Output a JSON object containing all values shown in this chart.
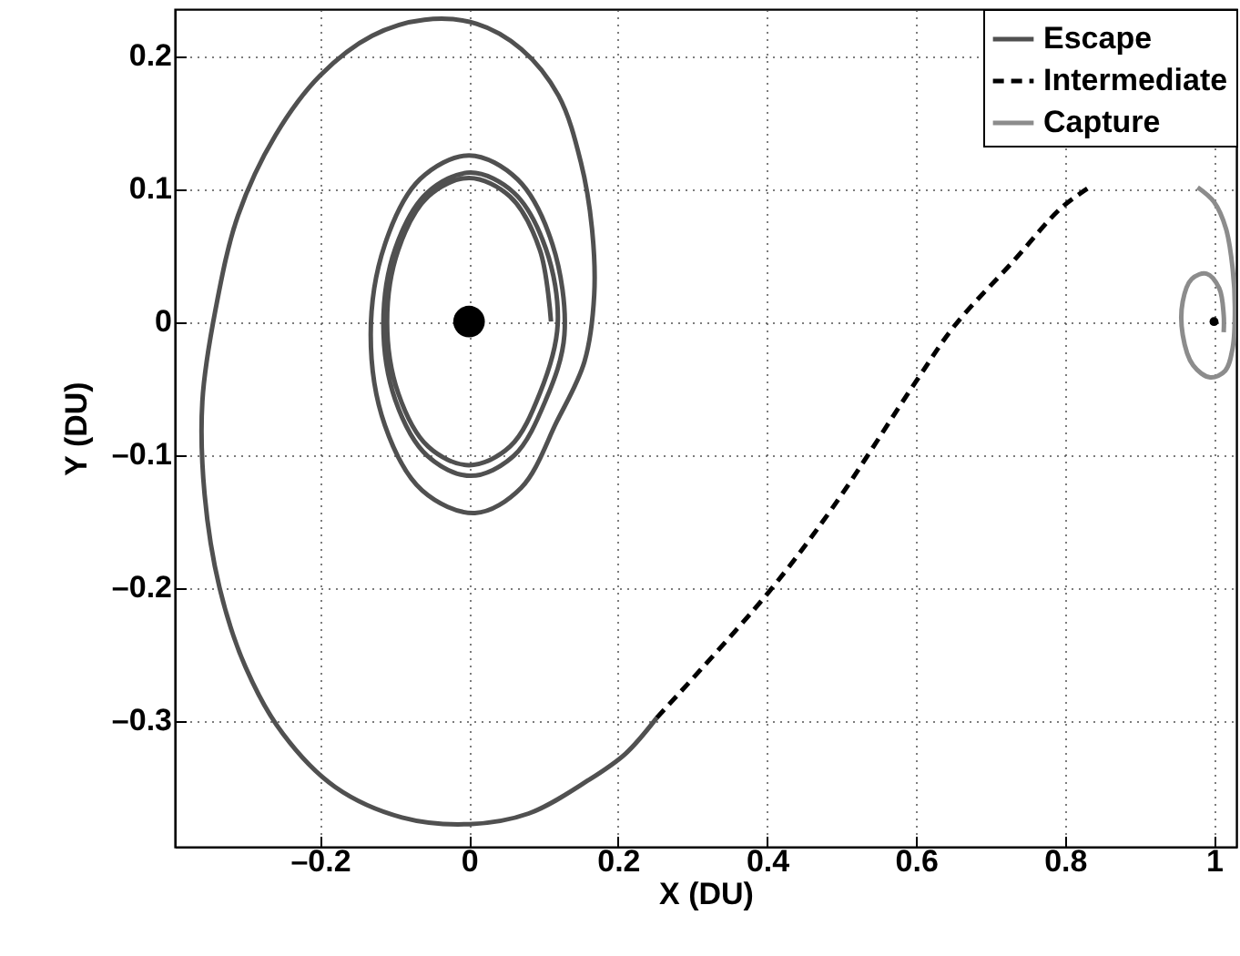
{
  "chart_data": {
    "type": "line",
    "xlabel": "X (DU)",
    "ylabel": "Y (DU)",
    "xlim": [
      -0.395,
      1.03
    ],
    "ylim": [
      -0.395,
      0.235
    ],
    "xticks": [
      {
        "value": -0.2,
        "label": "–0.2"
      },
      0,
      0.2,
      0.4,
      0.6,
      0.8,
      1
    ],
    "yticks": [
      {
        "value": -0.3,
        "label": "–0.3"
      },
      {
        "value": -0.2,
        "label": "–0.2"
      },
      {
        "value": -0.1,
        "label": "–0.1"
      },
      0,
      0.1,
      0.2
    ],
    "grid": true,
    "legend": "top right",
    "series": [
      {
        "name": "Escape",
        "color": "#505050",
        "line_style": "solid",
        "x": [
          0.11,
          0.095,
          0.055,
          0,
          -0.055,
          -0.095,
          -0.11,
          -0.095,
          -0.055,
          0,
          0.055,
          0.095,
          0.119,
          0.103,
          0.06,
          0.002,
          -0.056,
          -0.099,
          -0.115,
          -0.099,
          -0.056,
          0.002,
          0.06,
          0.103,
          0.128,
          0.112,
          0.065,
          0,
          -0.066,
          -0.113,
          -0.132,
          -0.113,
          -0.063,
          0.008,
          0.07,
          0.118,
          0.155,
          0.168,
          0.165,
          0.15,
          0.12,
          0.07,
          0.01,
          -0.06,
          -0.13,
          -0.2,
          -0.26,
          -0.31,
          -0.34,
          -0.358,
          -0.355,
          -0.335,
          -0.3,
          -0.25,
          -0.18,
          -0.09,
          0,
          0.08,
          0.16,
          0.21,
          0.252
        ],
        "values": [
          0,
          0.054,
          0.094,
          0.108,
          0.094,
          0.054,
          0,
          -0.054,
          -0.094,
          -0.108,
          -0.094,
          -0.054,
          -0.002,
          0.055,
          0.097,
          0.112,
          0.097,
          0.055,
          -0.002,
          -0.059,
          -0.101,
          -0.116,
          -0.101,
          -0.059,
          -0.01,
          0.058,
          0.107,
          0.125,
          0.107,
          0.058,
          -0.01,
          -0.078,
          -0.127,
          -0.144,
          -0.125,
          -0.075,
          -0.03,
          0.02,
          0.07,
          0.12,
          0.17,
          0.205,
          0.224,
          0.227,
          0.215,
          0.185,
          0.14,
          0.08,
          0.01,
          -0.06,
          -0.13,
          -0.2,
          -0.26,
          -0.31,
          -0.35,
          -0.373,
          -0.378,
          -0.37,
          -0.345,
          -0.325,
          -0.298
        ]
      },
      {
        "name": "Intermediate",
        "color": "#000000",
        "line_style": "dashed",
        "x": [
          0.252,
          0.4,
          0.488,
          0.6,
          0.652,
          0.73,
          0.794,
          0.83
        ],
        "values": [
          -0.298,
          -0.205,
          -0.14,
          -0.045,
          -0.003,
          0.045,
          0.085,
          0.1
        ]
      },
      {
        "name": "Capture",
        "color": "#8c8c8c",
        "line_style": "solid",
        "x": [
          0.978,
          1.0,
          1.016,
          1.025,
          1.028,
          1.025,
          1.015,
          0.995,
          0.972,
          0.958,
          0.958,
          0.97,
          0.99,
          1.007,
          1.013,
          1.013
        ],
        "values": [
          0.101,
          0.09,
          0.07,
          0.04,
          0.01,
          -0.02,
          -0.037,
          -0.042,
          -0.033,
          -0.01,
          0.015,
          0.032,
          0.036,
          0.025,
          0.005,
          -0.008
        ]
      },
      {
        "type": "bubble",
        "color": "#000000",
        "marker": "circle",
        "x": [
          0,
          1
        ],
        "values": [
          0,
          0
        ],
        "sizes": [
          1,
          0.08
        ]
      }
    ]
  }
}
